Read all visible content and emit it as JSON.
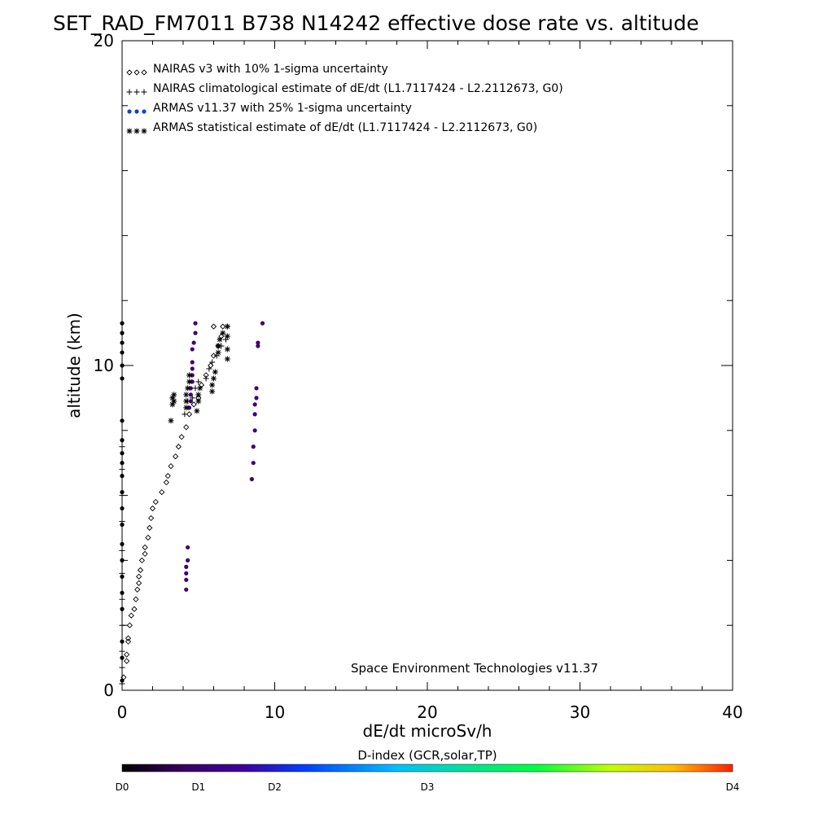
{
  "chart_data": {
    "type": "scatter",
    "title": "SET_RAD_FM7011  B738 N14242 effective dose rate vs. altitude",
    "xlabel": "dE/dt microSv/h",
    "ylabel": "altitude (km)",
    "xlim": [
      0,
      40
    ],
    "ylim": [
      0,
      20
    ],
    "x_ticks": [
      "0",
      "10",
      "20",
      "30",
      "40"
    ],
    "y_ticks": [
      "0",
      "10",
      "20"
    ],
    "legend_position": "top-left",
    "legend": [
      {
        "marker": "diamond",
        "label": "NAIRAS v3 with 10% 1-sigma uncertainty"
      },
      {
        "marker": "plus",
        "label": "NAIRAS climatological estimate of dE/dt (L1.7117424 - L2.2112673, G0)"
      },
      {
        "marker": "dot",
        "label": "ARMAS v11.37 with 25% 1-sigma uncertainty"
      },
      {
        "marker": "asterisk",
        "label": "ARMAS statistical estimate of dE/dt (L1.7117424 - L2.2112673, G0)"
      }
    ],
    "annotation": "Space Environment Technologies v11.37",
    "colorbar": {
      "title": "D-index (GCR,solar,TP)",
      "labels": [
        {
          "label": "D0",
          "frac": 0.0
        },
        {
          "label": "D1",
          "frac": 0.125
        },
        {
          "label": "D2",
          "frac": 0.25
        },
        {
          "label": "D3",
          "frac": 0.5
        },
        {
          "label": "D4",
          "frac": 1.0
        }
      ]
    },
    "series": [
      {
        "marker": "diamond",
        "color": "#000000",
        "points": [
          [
            0.1,
            0.4
          ],
          [
            0.3,
            0.9
          ],
          [
            0.3,
            1.1
          ],
          [
            0.4,
            1.5
          ],
          [
            0.4,
            1.6
          ],
          [
            0.5,
            2.0
          ],
          [
            0.6,
            2.3
          ],
          [
            0.8,
            2.5
          ],
          [
            0.9,
            2.8
          ],
          [
            1.0,
            3.1
          ],
          [
            1.1,
            3.3
          ],
          [
            1.1,
            3.5
          ],
          [
            1.2,
            3.7
          ],
          [
            1.3,
            4.0
          ],
          [
            1.5,
            4.2
          ],
          [
            1.5,
            4.4
          ],
          [
            1.7,
            4.7
          ],
          [
            1.8,
            5.0
          ],
          [
            1.9,
            5.3
          ],
          [
            2.0,
            5.6
          ],
          [
            2.2,
            5.8
          ],
          [
            2.6,
            6.1
          ],
          [
            2.9,
            6.4
          ],
          [
            3.0,
            6.6
          ],
          [
            3.2,
            6.9
          ],
          [
            3.5,
            7.2
          ],
          [
            3.7,
            7.5
          ],
          [
            3.9,
            7.8
          ],
          [
            4.2,
            8.1
          ],
          [
            4.4,
            8.5
          ],
          [
            4.7,
            8.8
          ],
          [
            5.0,
            9.0
          ],
          [
            5.2,
            9.4
          ],
          [
            5.5,
            9.7
          ],
          [
            5.8,
            10.0
          ],
          [
            6.0,
            10.3
          ],
          [
            6.3,
            10.6
          ],
          [
            6.5,
            10.9
          ],
          [
            6.6,
            11.2
          ],
          [
            6.0,
            11.2
          ]
        ]
      },
      {
        "marker": "plus",
        "color": "#000000",
        "points": [
          [
            0.0,
            0.2
          ],
          [
            0.0,
            0.7
          ],
          [
            0.0,
            1.2
          ],
          [
            0.0,
            2.0
          ],
          [
            0.0,
            2.8
          ],
          [
            0.0,
            3.6
          ],
          [
            0.0,
            4.3
          ],
          [
            0.0,
            5.2
          ],
          [
            0.0,
            6.0
          ],
          [
            0.0,
            6.8
          ],
          [
            0.0,
            7.5
          ],
          [
            4.1,
            8.5
          ],
          [
            4.3,
            8.9
          ],
          [
            4.6,
            9.0
          ],
          [
            4.8,
            9.3
          ],
          [
            5.0,
            9.5
          ],
          [
            5.5,
            9.6
          ],
          [
            5.7,
            9.9
          ],
          [
            5.9,
            10.1
          ],
          [
            6.2,
            10.3
          ],
          [
            6.5,
            10.6
          ],
          [
            6.8,
            10.8
          ],
          [
            6.9,
            11.2
          ]
        ]
      },
      {
        "marker": "dot",
        "color": "#400070",
        "points": [
          [
            4.2,
            3.1
          ],
          [
            4.2,
            3.4
          ],
          [
            4.2,
            3.6
          ],
          [
            4.2,
            3.8
          ],
          [
            4.3,
            4.0
          ],
          [
            4.3,
            4.4
          ],
          [
            4.4,
            8.7
          ],
          [
            4.5,
            8.9
          ],
          [
            4.5,
            9.1
          ],
          [
            4.5,
            9.3
          ],
          [
            4.6,
            9.5
          ],
          [
            4.6,
            9.7
          ],
          [
            4.6,
            9.9
          ],
          [
            4.6,
            10.1
          ],
          [
            4.6,
            10.5
          ],
          [
            4.7,
            10.7
          ],
          [
            4.8,
            11.0
          ],
          [
            4.8,
            11.3
          ],
          [
            8.5,
            6.5
          ],
          [
            8.6,
            7.0
          ],
          [
            8.6,
            7.5
          ],
          [
            8.7,
            8.0
          ],
          [
            8.7,
            8.5
          ],
          [
            8.7,
            8.8
          ],
          [
            8.8,
            9.0
          ],
          [
            8.8,
            9.3
          ],
          [
            8.9,
            10.6
          ],
          [
            8.9,
            10.7
          ],
          [
            9.2,
            11.3
          ]
        ]
      },
      {
        "marker": "dot",
        "color": "#000000",
        "points": [
          [
            0.0,
            0.3
          ],
          [
            0.0,
            1.0
          ],
          [
            0.0,
            1.5
          ],
          [
            0.0,
            2.5
          ],
          [
            0.0,
            3.0
          ],
          [
            0.0,
            3.5
          ],
          [
            0.0,
            4.0
          ],
          [
            0.0,
            4.5
          ],
          [
            0.0,
            5.1
          ],
          [
            0.0,
            5.6
          ],
          [
            0.0,
            6.1
          ],
          [
            0.0,
            6.6
          ],
          [
            0.0,
            7.0
          ],
          [
            0.0,
            7.3
          ],
          [
            0.0,
            7.7
          ],
          [
            0.0,
            8.3
          ],
          [
            0.0,
            9.6
          ],
          [
            0.0,
            10.0
          ],
          [
            0.0,
            10.4
          ],
          [
            0.0,
            10.7
          ],
          [
            0.0,
            11.0
          ],
          [
            0.0,
            11.3
          ]
        ]
      },
      {
        "marker": "asterisk",
        "color": "#000000",
        "points": [
          [
            3.2,
            8.3
          ],
          [
            3.3,
            8.8
          ],
          [
            3.3,
            9.0
          ],
          [
            3.4,
            8.9
          ],
          [
            3.4,
            9.1
          ],
          [
            4.2,
            8.7
          ],
          [
            4.2,
            8.9
          ],
          [
            4.2,
            9.1
          ],
          [
            4.3,
            9.3
          ],
          [
            4.4,
            9.5
          ],
          [
            4.4,
            9.7
          ],
          [
            4.9,
            8.6
          ],
          [
            5.0,
            8.9
          ],
          [
            5.0,
            9.1
          ],
          [
            5.1,
            9.3
          ],
          [
            5.9,
            9.2
          ],
          [
            5.9,
            9.4
          ],
          [
            6.0,
            9.6
          ],
          [
            6.1,
            9.8
          ],
          [
            6.3,
            10.4
          ],
          [
            6.3,
            10.6
          ],
          [
            6.4,
            10.8
          ],
          [
            6.6,
            11.0
          ],
          [
            6.9,
            10.2
          ],
          [
            6.9,
            10.5
          ],
          [
            6.9,
            10.9
          ],
          [
            6.9,
            11.2
          ]
        ]
      }
    ]
  }
}
